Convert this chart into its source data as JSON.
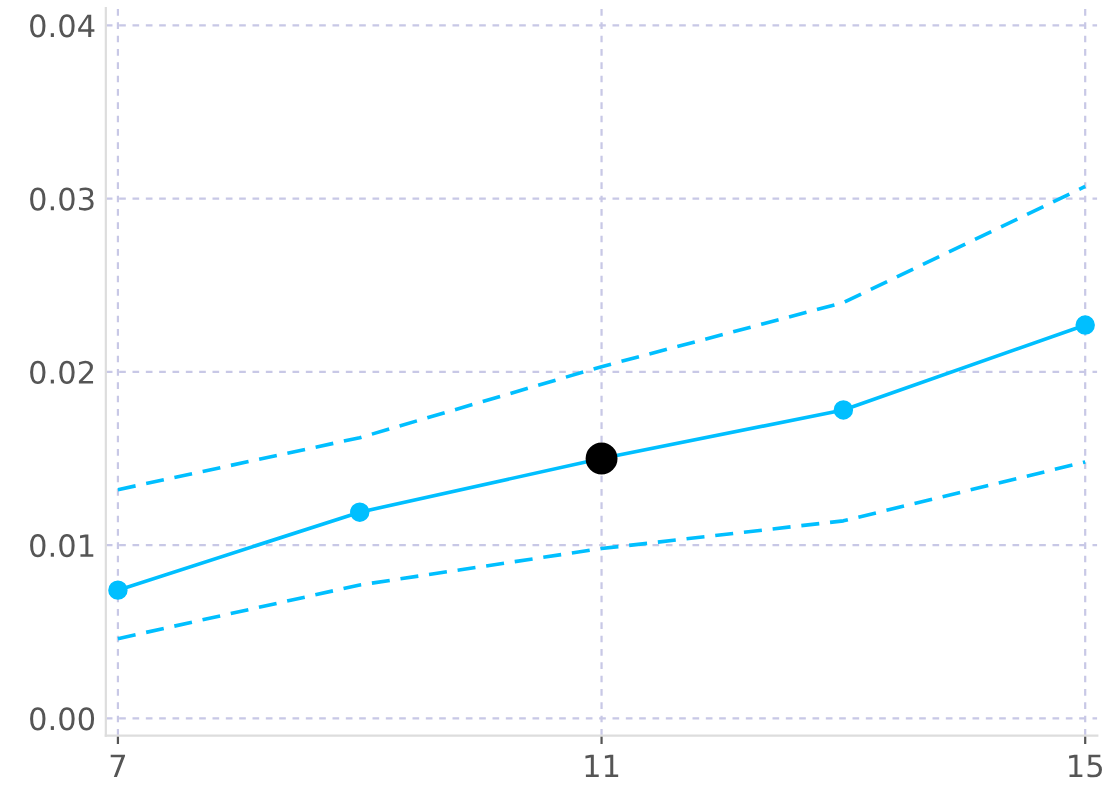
{
  "chart_data": {
    "type": "line",
    "x": [
      7,
      9,
      11,
      13,
      15
    ],
    "series": [
      {
        "color": "#00bfff",
        "values": [
          0.0074,
          0.0119,
          0.015,
          0.0178,
          0.0227
        ],
        "marker": "circle",
        "line_style": "solid"
      },
      {
        "color": "#00bfff",
        "values": [
          0.0132,
          0.0162,
          0.0203,
          0.024,
          0.0307
        ],
        "marker": "none",
        "line_style": "dashed"
      },
      {
        "color": "#00bfff",
        "values": [
          0.0046,
          0.0077,
          0.0098,
          0.0114,
          0.0148
        ],
        "marker": "none",
        "line_style": "dashed"
      },
      {
        "type": "scatter",
        "color": "#000000",
        "x": [
          11
        ],
        "values": [
          0.015
        ],
        "marker": "circle"
      }
    ],
    "xlim": [
      6.9,
      15.1
    ],
    "ylim": [
      -0.001,
      0.041
    ],
    "xticks": [
      7,
      11,
      15
    ],
    "yticks": [
      {
        "value": 0,
        "label": "0.00"
      },
      {
        "value": 0.01,
        "label": "0.01"
      },
      {
        "value": 0.02,
        "label": "0.02"
      },
      {
        "value": 0.03,
        "label": "0.03"
      },
      {
        "value": 0.04,
        "label": "0.04"
      }
    ],
    "grid": true
  }
}
